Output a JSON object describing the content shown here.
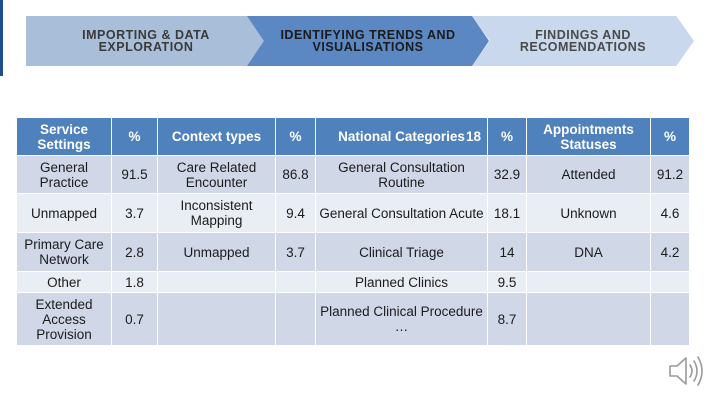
{
  "steps": [
    {
      "line1": "IMPORTING & DATA",
      "line2": "EXPLORATION"
    },
    {
      "line1": "IDENTIFYING TRENDS AND",
      "line2": "VISUALISATIONS"
    },
    {
      "line1": "FINDINGS AND",
      "line2": "RECOMENDATIONS"
    }
  ],
  "table": {
    "headers": [
      "Service Settings",
      "%",
      "Context types",
      "%",
      "National Categories",
      "%",
      "Appointments Statuses",
      "%"
    ],
    "national_count": "18",
    "rows": [
      [
        "General Practice",
        "91.5",
        "Care Related Encounter",
        "86.8",
        "General Consultation Routine",
        "32.9",
        "Attended",
        "91.2"
      ],
      [
        "Unmapped",
        "3.7",
        "Inconsistent Mapping",
        "9.4",
        "General Consultation Acute",
        "18.1",
        "Unknown",
        "4.6"
      ],
      [
        "Primary Care Network",
        "2.8",
        "Unmapped",
        "3.7",
        "Clinical Triage",
        "14",
        "DNA",
        "4.2"
      ],
      [
        "Other",
        "1.8",
        "",
        "",
        "Planned Clinics",
        "9.5",
        "",
        ""
      ],
      [
        "Extended Access Provision",
        "0.7",
        "",
        "",
        "Planned Clinical Procedure …",
        "8.7",
        "",
        ""
      ]
    ]
  },
  "colors": {
    "header_bg": "#4f81bd",
    "row_dark": "#d0d8e8",
    "row_light": "#e9edf4",
    "step_active": "#5b87c2",
    "step_done": "#a9bfd9",
    "step_next": "#c9d8ec"
  },
  "icons": {
    "audio": "speaker-icon"
  }
}
